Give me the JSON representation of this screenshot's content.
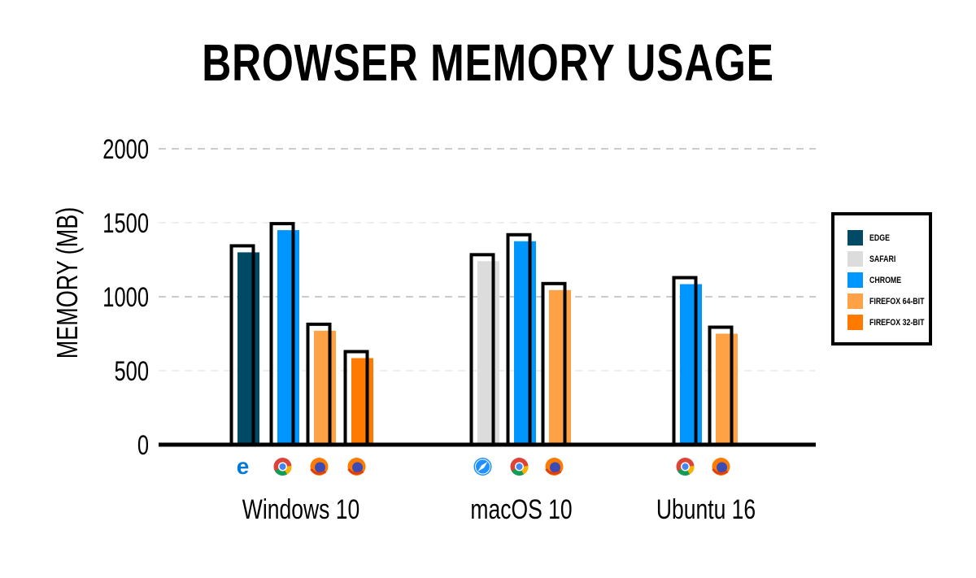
{
  "chart_data": {
    "type": "bar",
    "title": "BROWSER MEMORY USAGE",
    "ylabel": "MEMORY (MB)",
    "xlabel": "",
    "ylim": [
      0,
      2000
    ],
    "yticks": [
      "0",
      "500",
      "1000",
      "1500",
      "2000"
    ],
    "grid": true,
    "legend_position": "right",
    "categories": [
      "Windows 10",
      "macOS 10",
      "Ubuntu 16"
    ],
    "series": [
      {
        "name": "EDGE",
        "color": "#004a66",
        "icon": "edge-icon",
        "values": [
          1300,
          null,
          null
        ]
      },
      {
        "name": "SAFARI",
        "color": "#dcdcdc",
        "icon": "safari-icon",
        "values": [
          null,
          1240,
          null
        ]
      },
      {
        "name": "CHROME",
        "color": "#0096ff",
        "icon": "chrome-icon",
        "values": [
          1450,
          1375,
          1085
        ]
      },
      {
        "name": "FIREFOX 64-BIT",
        "color": "#ffa245",
        "icon": "firefox-icon",
        "values": [
          770,
          1045,
          750
        ]
      },
      {
        "name": "FIREFOX 32-BIT",
        "color": "#ff7a00",
        "icon": "firefox-icon",
        "values": [
          585,
          null,
          null
        ]
      }
    ]
  }
}
